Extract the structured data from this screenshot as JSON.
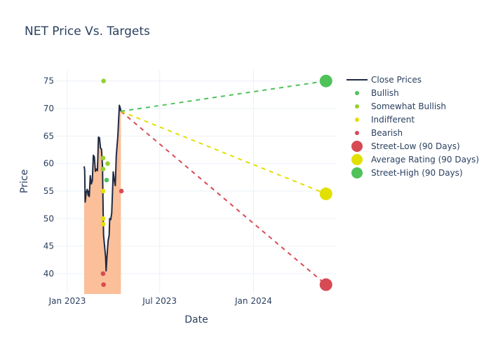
{
  "chart_data": {
    "type": "line",
    "title": "NET Price Vs. Targets",
    "xlabel": "Date",
    "ylabel": "Price",
    "xlim": [
      "2022-12-10",
      "2024-06-12"
    ],
    "ylim": [
      36.3,
      77
    ],
    "grid": true,
    "legend_position": "right",
    "x_ticks": [
      {
        "label": "Jan 2023",
        "date": "2023-01-01"
      },
      {
        "label": "Jul 2023",
        "date": "2023-07-01"
      },
      {
        "label": "Jan 2024",
        "date": "2024-01-01"
      }
    ],
    "y_ticks": [
      40,
      45,
      50,
      55,
      60,
      65,
      70,
      75
    ],
    "series": [
      {
        "name": "Close Prices",
        "kind": "line-area",
        "color": "#1f2a44",
        "fill_color": "#fbbf9a",
        "points": [
          [
            "2023-02-03",
            59.5
          ],
          [
            "2023-02-04",
            58.8
          ],
          [
            "2023-02-05",
            53.0
          ],
          [
            "2023-02-07",
            54.8
          ],
          [
            "2023-02-09",
            55.3
          ],
          [
            "2023-02-11",
            54.2
          ],
          [
            "2023-02-12",
            55.0
          ],
          [
            "2023-02-13",
            54.0
          ],
          [
            "2023-02-15",
            57.8
          ],
          [
            "2023-02-17",
            56.3
          ],
          [
            "2023-02-19",
            56.9
          ],
          [
            "2023-02-21",
            61.5
          ],
          [
            "2023-02-23",
            61.2
          ],
          [
            "2023-02-25",
            58.6
          ],
          [
            "2023-02-27",
            59.0
          ],
          [
            "2023-03-01",
            58.7
          ],
          [
            "2023-03-03",
            64.8
          ],
          [
            "2023-03-05",
            64.7
          ],
          [
            "2023-03-07",
            62.8
          ],
          [
            "2023-03-09",
            62.6
          ],
          [
            "2023-03-11",
            59.3
          ],
          [
            "2023-03-12",
            52.5
          ],
          [
            "2023-03-13",
            47.0
          ],
          [
            "2023-03-15",
            45.0
          ],
          [
            "2023-03-17",
            43.0
          ],
          [
            "2023-03-18",
            40.5
          ],
          [
            "2023-03-20",
            43.5
          ],
          [
            "2023-03-22",
            46.0
          ],
          [
            "2023-03-24",
            47.0
          ],
          [
            "2023-03-25",
            50.0
          ],
          [
            "2023-03-27",
            49.8
          ],
          [
            "2023-03-29",
            51.0
          ],
          [
            "2023-04-01",
            58.5
          ],
          [
            "2023-04-03",
            57.0
          ],
          [
            "2023-04-05",
            56.0
          ],
          [
            "2023-04-07",
            61.5
          ],
          [
            "2023-04-10",
            65.0
          ],
          [
            "2023-04-13",
            70.6
          ],
          [
            "2023-04-15",
            70.0
          ],
          [
            "2023-04-16",
            69.5
          ]
        ]
      },
      {
        "name": "Bullish",
        "kind": "markers",
        "color": "#4fc25a",
        "points": [
          [
            "2023-03-19",
            57.0
          ]
        ]
      },
      {
        "name": "Somewhat Bullish",
        "kind": "markers",
        "color": "#93d12c",
        "points": [
          [
            "2023-03-13",
            75.0
          ],
          [
            "2023-03-12",
            61.0
          ],
          [
            "2023-03-12",
            59.0
          ],
          [
            "2023-03-21",
            60.0
          ]
        ]
      },
      {
        "name": "Indifferent",
        "kind": "markers",
        "color": "#e2e000",
        "points": [
          [
            "2023-03-12",
            55.0
          ],
          [
            "2023-03-12",
            50.0
          ],
          [
            "2023-03-12",
            49.0
          ]
        ]
      },
      {
        "name": "Bearish",
        "kind": "markers",
        "color": "#d64a54",
        "points": [
          [
            "2023-03-12",
            40.0
          ],
          [
            "2023-03-13",
            38.0
          ],
          [
            "2023-04-17",
            55.0
          ]
        ]
      },
      {
        "name": "Street-Low (90 Days)",
        "kind": "target",
        "color": "#d64a54",
        "from": [
          "2023-04-16",
          69.5
        ],
        "point": [
          "2024-05-22",
          38.0
        ]
      },
      {
        "name": "Average Rating (90 Days)",
        "kind": "target",
        "color": "#e2e000",
        "from": [
          "2023-04-16",
          69.5
        ],
        "point": [
          "2024-05-22",
          54.5
        ]
      },
      {
        "name": "Street-High (90 Days)",
        "kind": "target",
        "color": "#4fc25a",
        "from": [
          "2023-04-16",
          69.5
        ],
        "point": [
          "2024-05-22",
          75.0
        ]
      }
    ],
    "legend": [
      {
        "label": "Close Prices",
        "symbol": "line",
        "color": "#1f2a44"
      },
      {
        "label": "Bullish",
        "symbol": "dot",
        "color": "#4fc25a"
      },
      {
        "label": "Somewhat Bullish",
        "symbol": "dot",
        "color": "#93d12c"
      },
      {
        "label": "Indifferent",
        "symbol": "dot",
        "color": "#e2e000"
      },
      {
        "label": "Bearish",
        "symbol": "dot",
        "color": "#d64a54"
      },
      {
        "label": "Street-Low (90 Days)",
        "symbol": "big-dot",
        "color": "#d64a54"
      },
      {
        "label": "Average Rating (90 Days)",
        "symbol": "big-dot",
        "color": "#e2e000"
      },
      {
        "label": "Street-High (90 Days)",
        "symbol": "big-dot",
        "color": "#4fc25a"
      }
    ]
  }
}
